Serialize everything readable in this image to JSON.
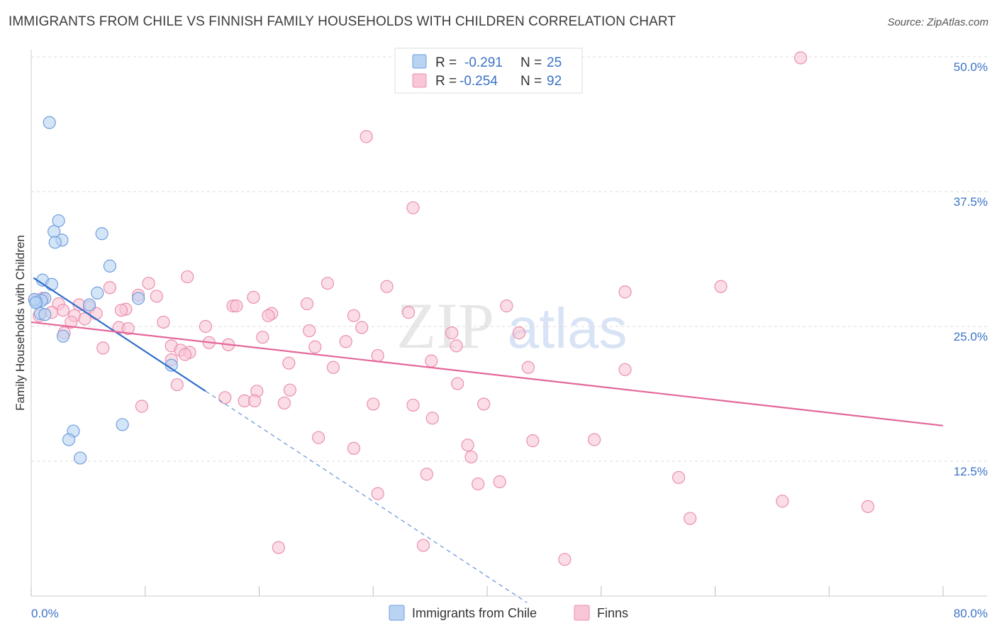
{
  "title": "IMMIGRANTS FROM CHILE VS FINNISH FAMILY HOUSEHOLDS WITH CHILDREN CORRELATION CHART",
  "source": "Source: ZipAtlas.com",
  "watermark": {
    "zip": "ZIP",
    "atlas": "atlas"
  },
  "colors": {
    "chile_fill": "#b9d3f3",
    "chile_stroke": "#6f9fde",
    "chile_line": "#2f6fcb",
    "finns_fill": "#f8c6d6",
    "finns_stroke": "#ea8fae",
    "finns_line": "#e4679a",
    "grid": "#dddddd",
    "axis_label": "#3b73c6"
  },
  "chart_data": {
    "type": "scatter",
    "title": "IMMIGRANTS FROM CHILE VS FINNISH FAMILY HOUSEHOLDS WITH CHILDREN CORRELATION CHART",
    "xlabel": "",
    "ylabel": "Family Households with Children",
    "xlim": [
      0,
      80
    ],
    "ylim": [
      0,
      50
    ],
    "x_tick_labels": {
      "min": "0.0%",
      "max": "80.0%"
    },
    "y_ticks": [
      {
        "value": 12.5,
        "label": "12.5%"
      },
      {
        "value": 25.0,
        "label": "25.0%"
      },
      {
        "value": 37.5,
        "label": "37.5%"
      },
      {
        "value": 50.0,
        "label": "50.0%"
      }
    ],
    "grid": true,
    "stats": [
      {
        "r_label": "R =",
        "r_value": "-0.291",
        "n_label": "N =",
        "n_value": "25"
      },
      {
        "r_label": "R =",
        "r_value": "-0.254",
        "n_label": "N =",
        "n_value": "92"
      }
    ],
    "series": [
      {
        "name": "Immigrants from Chile",
        "trend": {
          "x_start": 0.2,
          "y_start": 29.5,
          "x_end": 15.3,
          "y_end": 19.0,
          "x_dash_end": 43.5
        },
        "points": [
          [
            1.6,
            43.9
          ],
          [
            2.4,
            34.8
          ],
          [
            2.0,
            33.8
          ],
          [
            2.7,
            33.0
          ],
          [
            2.1,
            32.8
          ],
          [
            6.2,
            33.6
          ],
          [
            6.9,
            30.6
          ],
          [
            1.0,
            29.3
          ],
          [
            1.8,
            28.9
          ],
          [
            5.8,
            28.1
          ],
          [
            9.4,
            27.6
          ],
          [
            1.2,
            27.6
          ],
          [
            0.5,
            27.3
          ],
          [
            0.9,
            27.4
          ],
          [
            0.3,
            27.5
          ],
          [
            5.1,
            27.0
          ],
          [
            0.8,
            26.2
          ],
          [
            1.2,
            26.1
          ],
          [
            2.8,
            24.1
          ],
          [
            12.3,
            21.4
          ],
          [
            8.0,
            15.9
          ],
          [
            3.7,
            15.3
          ],
          [
            3.3,
            14.5
          ],
          [
            4.3,
            12.8
          ],
          [
            0.4,
            27.2
          ]
        ]
      },
      {
        "name": "Finns",
        "trend": {
          "x_start": 0.0,
          "y_start": 25.4,
          "x_end": 80.0,
          "y_end": 15.8
        },
        "points": [
          [
            67.5,
            49.9
          ],
          [
            29.4,
            42.6
          ],
          [
            33.5,
            36.0
          ],
          [
            13.7,
            29.6
          ],
          [
            10.3,
            29.0
          ],
          [
            26.0,
            29.0
          ],
          [
            31.2,
            28.7
          ],
          [
            60.5,
            28.7
          ],
          [
            52.1,
            28.2
          ],
          [
            9.4,
            27.9
          ],
          [
            11.0,
            27.8
          ],
          [
            19.5,
            27.7
          ],
          [
            1.0,
            27.6
          ],
          [
            2.4,
            27.1
          ],
          [
            6.9,
            28.6
          ],
          [
            24.2,
            27.1
          ],
          [
            17.7,
            26.9
          ],
          [
            41.7,
            26.9
          ],
          [
            8.3,
            26.6
          ],
          [
            2.8,
            26.5
          ],
          [
            5.1,
            26.8
          ],
          [
            1.8,
            26.3
          ],
          [
            3.8,
            26.0
          ],
          [
            5.7,
            26.2
          ],
          [
            21.1,
            26.2
          ],
          [
            20.8,
            26.0
          ],
          [
            28.3,
            26.0
          ],
          [
            0.7,
            26.0
          ],
          [
            4.7,
            25.7
          ],
          [
            3.5,
            25.4
          ],
          [
            11.6,
            25.4
          ],
          [
            7.7,
            24.9
          ],
          [
            15.3,
            25.0
          ],
          [
            8.5,
            24.8
          ],
          [
            24.4,
            24.6
          ],
          [
            29.0,
            24.9
          ],
          [
            36.9,
            24.4
          ],
          [
            42.8,
            24.4
          ],
          [
            2.9,
            24.4
          ],
          [
            20.3,
            24.0
          ],
          [
            15.6,
            23.5
          ],
          [
            17.3,
            23.3
          ],
          [
            27.6,
            23.6
          ],
          [
            12.3,
            23.2
          ],
          [
            24.9,
            23.1
          ],
          [
            37.3,
            23.2
          ],
          [
            6.3,
            23.0
          ],
          [
            13.1,
            22.8
          ],
          [
            13.9,
            22.6
          ],
          [
            30.4,
            22.3
          ],
          [
            12.3,
            21.9
          ],
          [
            22.6,
            21.6
          ],
          [
            26.5,
            21.2
          ],
          [
            35.1,
            21.8
          ],
          [
            43.6,
            21.2
          ],
          [
            52.1,
            21.0
          ],
          [
            12.8,
            19.6
          ],
          [
            19.8,
            19.0
          ],
          [
            22.7,
            19.1
          ],
          [
            37.4,
            19.7
          ],
          [
            17.0,
            18.4
          ],
          [
            18.7,
            18.1
          ],
          [
            19.6,
            18.1
          ],
          [
            22.2,
            17.9
          ],
          [
            30.0,
            17.8
          ],
          [
            33.5,
            17.7
          ],
          [
            39.7,
            17.8
          ],
          [
            9.7,
            17.6
          ],
          [
            35.2,
            16.5
          ],
          [
            25.2,
            14.7
          ],
          [
            44.0,
            14.4
          ],
          [
            49.4,
            14.5
          ],
          [
            28.3,
            13.7
          ],
          [
            38.3,
            14.0
          ],
          [
            38.6,
            12.9
          ],
          [
            34.7,
            11.3
          ],
          [
            56.8,
            11.0
          ],
          [
            39.2,
            10.4
          ],
          [
            41.1,
            10.6
          ],
          [
            30.4,
            9.5
          ],
          [
            65.9,
            8.8
          ],
          [
            73.4,
            8.3
          ],
          [
            57.8,
            7.2
          ],
          [
            21.7,
            4.5
          ],
          [
            34.4,
            4.7
          ],
          [
            46.8,
            3.4
          ],
          [
            0.3,
            27.5
          ],
          [
            4.2,
            27.0
          ],
          [
            7.9,
            26.5
          ],
          [
            13.5,
            22.4
          ],
          [
            18.0,
            26.9
          ],
          [
            33.1,
            26.3
          ]
        ]
      }
    ]
  },
  "legend": {
    "items": [
      {
        "label": "Immigrants from Chile"
      },
      {
        "label": "Finns"
      }
    ]
  }
}
